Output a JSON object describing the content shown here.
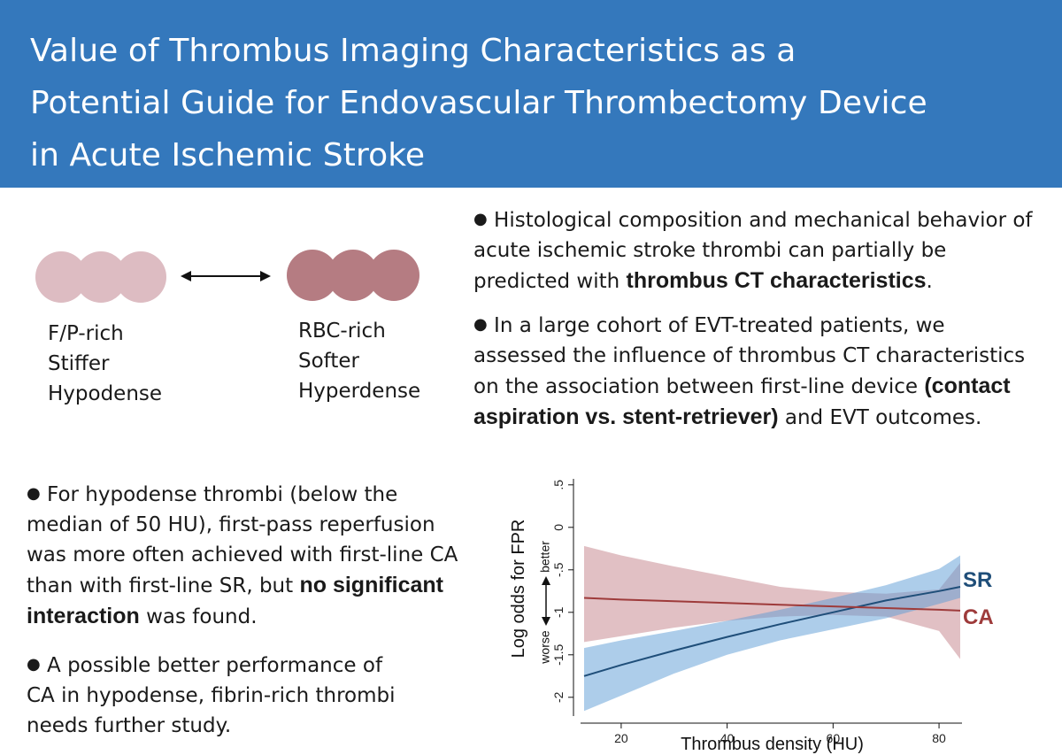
{
  "title": "Value of Thrombus Imaging Characteristics as a\nPotential Guide for Endovascular Thrombectomy Device\nin Acute Ischemic Stroke",
  "thrombus_types": {
    "left": {
      "label": "F/P-rich\nStiffer\nHypodense",
      "color": "#ddbcc2"
    },
    "right": {
      "label": "RBC-rich\nSofter\nHyperdense",
      "color": "#b57c82"
    }
  },
  "bullets": {
    "b1": {
      "pre": "Histological composition and mechanical behavior of acute ischemic stroke thrombi can partially be predicted with ",
      "bold": "thrombus CT characteristics",
      "post": "."
    },
    "b2": {
      "pre": "In a large cohort of EVT-treated patients, we assessed the influence of thrombus CT characteristics on the association between first-line device ",
      "bold": "(contact aspiration vs. stent-retriever)",
      "post": " and EVT outcomes."
    },
    "b3": {
      "pre": "For hypodense thrombi (below the median of 50 HU), first-pass reperfusion was more often achieved with first-line CA than with first-line SR, but ",
      "bold": "no significant interaction",
      "post": " was found."
    },
    "b4": {
      "text": "A possible better performance of CA in hypodense, fibrin-rich thrombi needs further study."
    }
  },
  "chart_data": {
    "type": "line",
    "xlabel": "Thrombus density (HU)",
    "ylabel": "Log odds for FPR",
    "ylabel_worse": "worse",
    "ylabel_better": "better",
    "xlim": [
      13,
      84
    ],
    "ylim": [
      -2.2,
      0.55
    ],
    "x_ticks": [
      20,
      40,
      60,
      80
    ],
    "y_ticks": [
      {
        "v": 0.5,
        "label": ".5"
      },
      {
        "v": 0,
        "label": "0"
      },
      {
        "v": -0.5,
        "label": "-.5"
      },
      {
        "v": -1,
        "label": "-1"
      },
      {
        "v": -1.5,
        "label": "-1.5"
      },
      {
        "v": -2,
        "label": "-2"
      }
    ],
    "series": [
      {
        "name": "SR",
        "color": "#1f4e79",
        "band_color": "#5b9bd5",
        "band_opacity": 0.5,
        "x": [
          13,
          20,
          30,
          40,
          50,
          60,
          70,
          80,
          84
        ],
        "y": [
          -1.75,
          -1.62,
          -1.45,
          -1.29,
          -1.14,
          -1.0,
          -0.86,
          -0.75,
          -0.7
        ],
        "lower": [
          -2.16,
          -1.98,
          -1.72,
          -1.5,
          -1.33,
          -1.2,
          -1.07,
          -0.9,
          -0.83
        ],
        "upper": [
          -1.42,
          -1.33,
          -1.22,
          -1.1,
          -0.97,
          -0.83,
          -0.68,
          -0.49,
          -0.33
        ]
      },
      {
        "name": "CA",
        "color": "#9e3b3b",
        "band_color": "#c98c94",
        "band_opacity": 0.55,
        "x": [
          13,
          20,
          30,
          40,
          50,
          60,
          70,
          80,
          84
        ],
        "y": [
          -0.83,
          -0.85,
          -0.87,
          -0.89,
          -0.91,
          -0.93,
          -0.95,
          -0.97,
          -0.98
        ],
        "lower": [
          -1.35,
          -1.28,
          -1.18,
          -1.1,
          -1.05,
          -1.03,
          -1.05,
          -1.22,
          -1.55
        ],
        "upper": [
          -0.22,
          -0.33,
          -0.46,
          -0.58,
          -0.7,
          -0.76,
          -0.78,
          -0.73,
          -0.42
        ]
      }
    ]
  }
}
